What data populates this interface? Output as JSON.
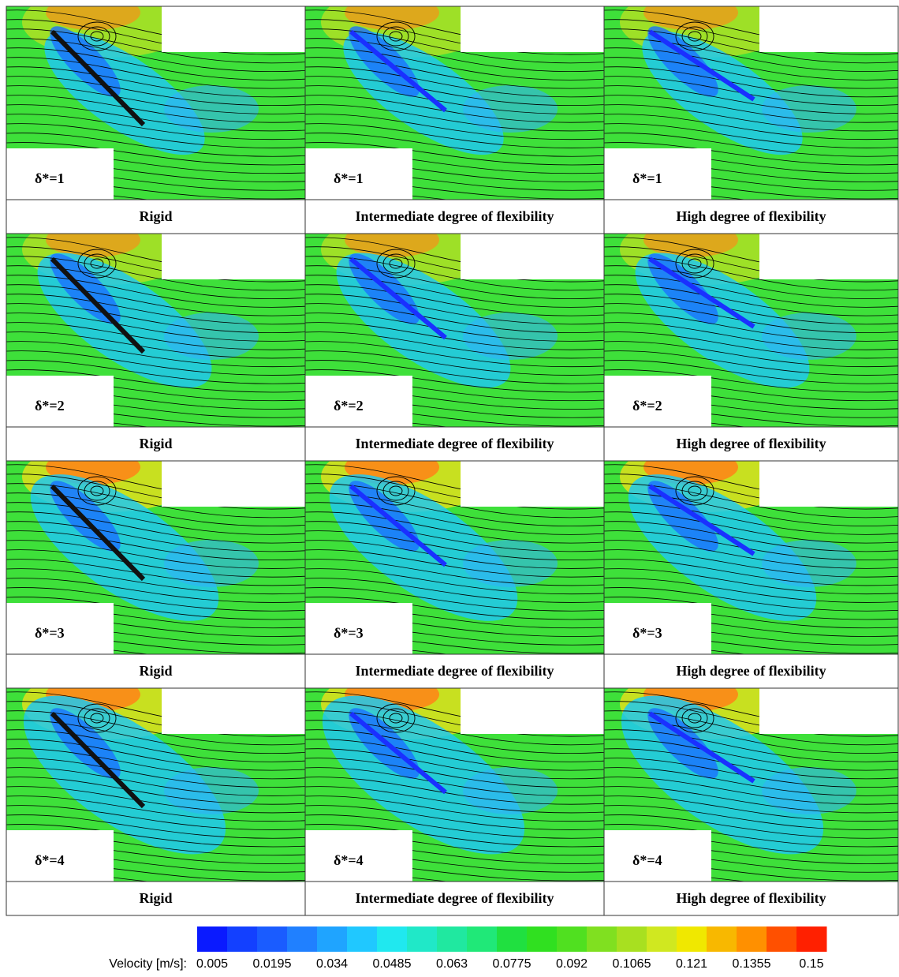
{
  "panels": [
    {
      "label": "δ*=1",
      "caption": "Rigid"
    },
    {
      "label": "δ*=1",
      "caption": "Intermediate degree of flexibility"
    },
    {
      "label": "δ*=1",
      "caption": "High degree of flexibility"
    },
    {
      "label": "δ*=2",
      "caption": "Rigid"
    },
    {
      "label": "δ*=2",
      "caption": "Intermediate degree of flexibility"
    },
    {
      "label": "δ*=2",
      "caption": "High degree of flexibility"
    },
    {
      "label": "δ*=3",
      "caption": "Rigid"
    },
    {
      "label": "δ*=3",
      "caption": "Intermediate degree of flexibility"
    },
    {
      "label": "δ*=3",
      "caption": "High degree of flexibility"
    },
    {
      "label": "δ*=4",
      "caption": "Rigid"
    },
    {
      "label": "δ*=4",
      "caption": "Intermediate degree of flexibility"
    },
    {
      "label": "δ*=4",
      "caption": "High degree of flexibility"
    }
  ],
  "colorbar": {
    "label": "Velocity [m/s]:",
    "ticks": [
      0.005,
      0.0195,
      0.034,
      0.0485,
      0.063,
      0.0775,
      0.092,
      0.1065,
      0.121,
      0.1355,
      0.15
    ],
    "colors": [
      "#0a1aff",
      "#1340ff",
      "#1a5cff",
      "#2080ff",
      "#1fa4ff",
      "#20c8ff",
      "#20e8ef",
      "#20e8c8",
      "#20e8a0",
      "#20e878",
      "#20e040",
      "#30e020",
      "#50e020",
      "#80e020",
      "#a8e020",
      "#d0e820",
      "#f0e800",
      "#f8b800",
      "#ff9000",
      "#ff5000",
      "#ff2000"
    ]
  }
}
